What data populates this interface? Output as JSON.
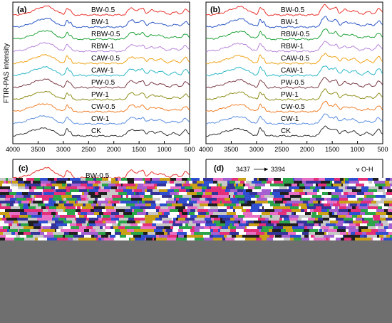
{
  "figure": {
    "ylabel": "FTIR-PAS intensity",
    "colors": {
      "BW-0.5": "#e8332c",
      "BW-1": "#2a56c6",
      "RBW-0.5": "#22a33a",
      "RBW-1": "#b784d8",
      "CAW-0.5": "#f0a419",
      "CAW-1": "#2bb7c7",
      "PW-0.5": "#7a3b45",
      "PW-1": "#8f8f1c",
      "CW-0.5": "#f07f2a",
      "CW-1": "#5b8ee0",
      "CK": "#333333"
    },
    "glitch_colors": [
      "#e4307a",
      "#2f4fd0",
      "#2ca54a",
      "#c9a016",
      "#1f1f1f",
      "#c7c7c7",
      "#a45fd1",
      "#ffffff",
      "#e86fc6",
      "#333399"
    ],
    "panel_d_annotation": {
      "left_value": "3437",
      "right_value": "3394",
      "left_color": "#e0262b",
      "right_color": "#3366aa",
      "mode": "ν O-H"
    }
  },
  "chart_data": [
    {
      "panel": "(a)",
      "type": "line",
      "xlim": [
        4000,
        500
      ],
      "x_ticks": [
        4000,
        3500,
        3000,
        2500,
        2000,
        1500,
        1000,
        500
      ],
      "x_reversed": true,
      "y_ticks": false,
      "series_labels": [
        "BW-0.5",
        "BW-1",
        "RBW-0.5",
        "RBW-1",
        "CAW-0.5",
        "CAW-1",
        "PW-0.5",
        "PW-1",
        "CW-0.5",
        "CW-1",
        "CK"
      ]
    },
    {
      "panel": "(b)",
      "type": "line",
      "xlim": [
        4000,
        500
      ],
      "x_ticks": [
        4000,
        3500,
        3000,
        2500,
        2000,
        1500,
        1000,
        500
      ],
      "x_reversed": true,
      "y_ticks": false,
      "series_labels": [
        "BW-0.5",
        "BW-1",
        "RBW-0.5",
        "RBW-1",
        "CAW-0.5",
        "CAW-1",
        "PW-0.5",
        "PW-1",
        "CW-0.5",
        "CW-1",
        "CK"
      ]
    },
    {
      "panel": "(c)",
      "type": "line",
      "series_labels": [
        "BW-0.5"
      ]
    },
    {
      "panel": "(d)",
      "type": "line",
      "annotation": "ν O-H"
    }
  ]
}
